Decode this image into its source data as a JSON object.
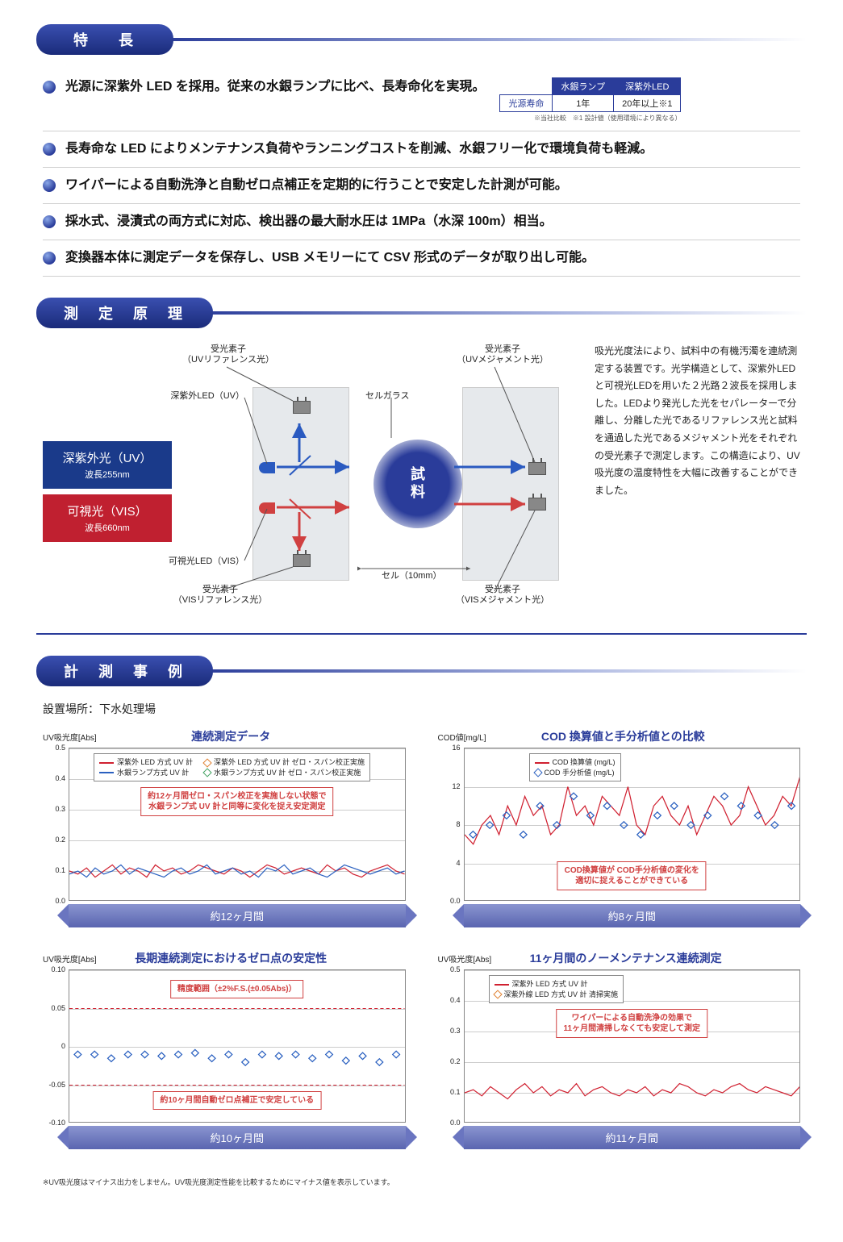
{
  "sections": {
    "features_title": "特　長",
    "principle_title": "測 定 原 理",
    "cases_title": "計 測 事 例"
  },
  "features": [
    {
      "text": "光源に深紫外 LED を採用。従来の水銀ランプに比べ、長寿命化を実現。"
    },
    {
      "text": "長寿命な LED によりメンテナンス負荷やランニングコストを削減、水銀フリー化で環境負荷も軽減。"
    },
    {
      "text": "ワイパーによる自動洗浄と自動ゼロ点補正を定期的に行うことで安定した計測が可能。"
    },
    {
      "text": "採水式、浸漬式の両方式に対応、検出器の最大耐水圧は 1MPa（水深 100m）相当。"
    },
    {
      "text": "変換器本体に測定データを保存し、USB メモリーにて CSV 形式のデータが取り出し可能。"
    }
  ],
  "life_table": {
    "header_row_label": "光源寿命",
    "cols": [
      "水銀ランプ",
      "深紫外LED"
    ],
    "vals": [
      "1年",
      "20年以上※1"
    ],
    "note": "※当社比較　※1 設計値（使用環境により異なる）",
    "col_bg": "#2a3c9a",
    "col_text": "#ffffff"
  },
  "principle": {
    "uv_label": "深紫外光（UV）",
    "uv_wl": "波長255nm",
    "vis_label": "可視光（VIS）",
    "vis_wl": "波長660nm",
    "labels": {
      "uv_ref": "受光素子\n（UVリファレンス光）",
      "uv_meas": "受光素子\n（UVメジャメント光）",
      "uv_led": "深紫外LED（UV）",
      "cell_glass": "セルガラス",
      "vis_led": "可視光LED（VIS）",
      "vis_ref": "受光素子\n（VISリファレンス光）",
      "vis_meas": "受光素子\n（VISメジャメント光）",
      "cell": "セル（10mm）"
    },
    "sample_text": "試\n料",
    "description": "吸光光度法により、試料中の有機汚濁を連続測定する装置です。光学構造として、深紫外LEDと可視光LEDを用いた２光路２波長を採用しました。LEDより発光した光をセパレーターで分離し、分離した光であるリファレンス光と試料を通過した光であるメジャメント光をそれぞれの受光素子で測定します。この構造により、UV吸光度の温度特性を大幅に改善することができました。",
    "colors": {
      "uv_box": "#1a3a8a",
      "vis_box": "#c02030",
      "box_bg": "#e6e9ec",
      "sample": "#2a3c9a"
    }
  },
  "cases": {
    "location": "設置場所：下水処理場",
    "footnote": "※UV吸光度はマイナス出力をしません。UV吸光度測定性能を比較するためにマイナス値を表示しています。",
    "charts": [
      {
        "title": "連続測定データ",
        "ylabel": "UV吸光度[Abs]",
        "type": "line",
        "ylim": [
          0.0,
          0.5
        ],
        "ytick_step": 0.1,
        "legend": [
          {
            "label": "深紫外 LED 方式 UV 計",
            "color": "#d02030",
            "style": "line"
          },
          {
            "label": "深紫外 LED 方式 UV 計 ゼロ・スパン校正実施",
            "color": "#e08030",
            "style": "marker"
          },
          {
            "label": "水銀ランプ方式 UV 計",
            "color": "#2a60c0",
            "style": "line"
          },
          {
            "label": "水銀ランプ方式 UV 計 ゼロ・スパン校正実施",
            "color": "#40a060",
            "style": "marker"
          }
        ],
        "annotation": "約12ヶ月間ゼロ・スパン校正を実施しない状態で\n水銀ランプ式 UV 計と同等に変化を捉え安定測定",
        "duration": "約12ヶ月間",
        "series": [
          {
            "name": "led",
            "color": "#d02030",
            "data": [
              0.1,
              0.09,
              0.11,
              0.08,
              0.1,
              0.12,
              0.09,
              0.11,
              0.1,
              0.08,
              0.12,
              0.1,
              0.11,
              0.09,
              0.1,
              0.12,
              0.11,
              0.1,
              0.09,
              0.11,
              0.1,
              0.08,
              0.1,
              0.12,
              0.11,
              0.09,
              0.1,
              0.11,
              0.1,
              0.09,
              0.12,
              0.1,
              0.11,
              0.09,
              0.08,
              0.1,
              0.11,
              0.12,
              0.1,
              0.09
            ]
          },
          {
            "name": "hg",
            "color": "#2a60c0",
            "data": [
              0.09,
              0.1,
              0.08,
              0.11,
              0.09,
              0.1,
              0.12,
              0.09,
              0.11,
              0.1,
              0.09,
              0.08,
              0.1,
              0.11,
              0.09,
              0.1,
              0.12,
              0.09,
              0.1,
              0.11,
              0.09,
              0.1,
              0.08,
              0.11,
              0.1,
              0.12,
              0.09,
              0.1,
              0.11,
              0.09,
              0.08,
              0.1,
              0.12,
              0.11,
              0.1,
              0.09,
              0.1,
              0.11,
              0.09,
              0.1
            ]
          }
        ]
      },
      {
        "title": "COD 換算値と手分析値との比較",
        "ylabel": "COD値[mg/L]",
        "type": "line",
        "ylim": [
          0,
          16
        ],
        "ytick_step": 4,
        "legend": [
          {
            "label": "COD 換算値 (mg/L)",
            "color": "#d02030",
            "style": "line"
          },
          {
            "label": "COD 手分析値 (mg/L)",
            "color": "#2a60c0",
            "style": "marker"
          }
        ],
        "annotation": "COD換算値が COD手分析値の変化を\n適切に捉えることができている",
        "duration": "約8ヶ月間",
        "series": [
          {
            "name": "cod",
            "color": "#d02030",
            "data": [
              7,
              6,
              8,
              9,
              7,
              10,
              8,
              11,
              9,
              10,
              7,
              8,
              12,
              9,
              10,
              8,
              11,
              10,
              9,
              12,
              8,
              7,
              10,
              11,
              9,
              8,
              10,
              7,
              9,
              11,
              10,
              8,
              9,
              12,
              10,
              8,
              9,
              11,
              10,
              13
            ]
          }
        ],
        "markers": {
          "color": "#2a60c0",
          "data": [
            7,
            8,
            9,
            7,
            10,
            8,
            11,
            9,
            10,
            8,
            7,
            9,
            10,
            8,
            9,
            11,
            10,
            9,
            8,
            10
          ]
        }
      },
      {
        "title": "長期連続測定におけるゼロ点の安定性",
        "ylabel": "UV吸光度[Abs]",
        "type": "scatter",
        "ylim": [
          -0.1,
          0.1
        ],
        "ytick_step": 0.05,
        "legend": [],
        "annotation_top": "精度範囲（±2%F.S.(±0.05Abs)）",
        "annotation": "約10ヶ月間自動ゼロ点補正で安定している",
        "duration": "約10ヶ月間",
        "markers": {
          "color": "#2a60c0",
          "data": [
            -0.01,
            -0.01,
            -0.015,
            -0.01,
            -0.01,
            -0.012,
            -0.01,
            -0.008,
            -0.015,
            -0.01,
            -0.02,
            -0.01,
            -0.012,
            -0.01,
            -0.015,
            -0.01,
            -0.018,
            -0.012,
            -0.02,
            -0.01
          ]
        },
        "band": {
          "lo": -0.05,
          "hi": 0.05,
          "color": "#d02030"
        }
      },
      {
        "title": "11ヶ月間のノーメンテナンス連続測定",
        "ylabel": "UV吸光度[Abs]",
        "type": "line",
        "ylim": [
          0.0,
          0.5
        ],
        "ytick_step": 0.1,
        "legend": [
          {
            "label": "深紫外 LED 方式 UV 計",
            "color": "#d02030",
            "style": "line"
          },
          {
            "label": "深紫外線 LED 方式 UV 計  清掃実施",
            "color": "#e08030",
            "style": "marker"
          }
        ],
        "annotation": "ワイパーによる自動洗浄の効果で\n11ヶ月間清掃しなくても安定して測定",
        "duration": "約11ヶ月間",
        "series": [
          {
            "name": "led",
            "color": "#d02030",
            "data": [
              0.1,
              0.11,
              0.09,
              0.12,
              0.1,
              0.08,
              0.11,
              0.13,
              0.1,
              0.12,
              0.09,
              0.11,
              0.1,
              0.13,
              0.09,
              0.11,
              0.12,
              0.1,
              0.09,
              0.11,
              0.1,
              0.12,
              0.09,
              0.11,
              0.1,
              0.13,
              0.12,
              0.1,
              0.09,
              0.11,
              0.1,
              0.12,
              0.13,
              0.11,
              0.1,
              0.12,
              0.11,
              0.1,
              0.09,
              0.12
            ]
          }
        ]
      }
    ]
  },
  "colors": {
    "accent": "#2a3c9a",
    "grid": "#cccccc",
    "chart_bg": "#ffffff"
  }
}
